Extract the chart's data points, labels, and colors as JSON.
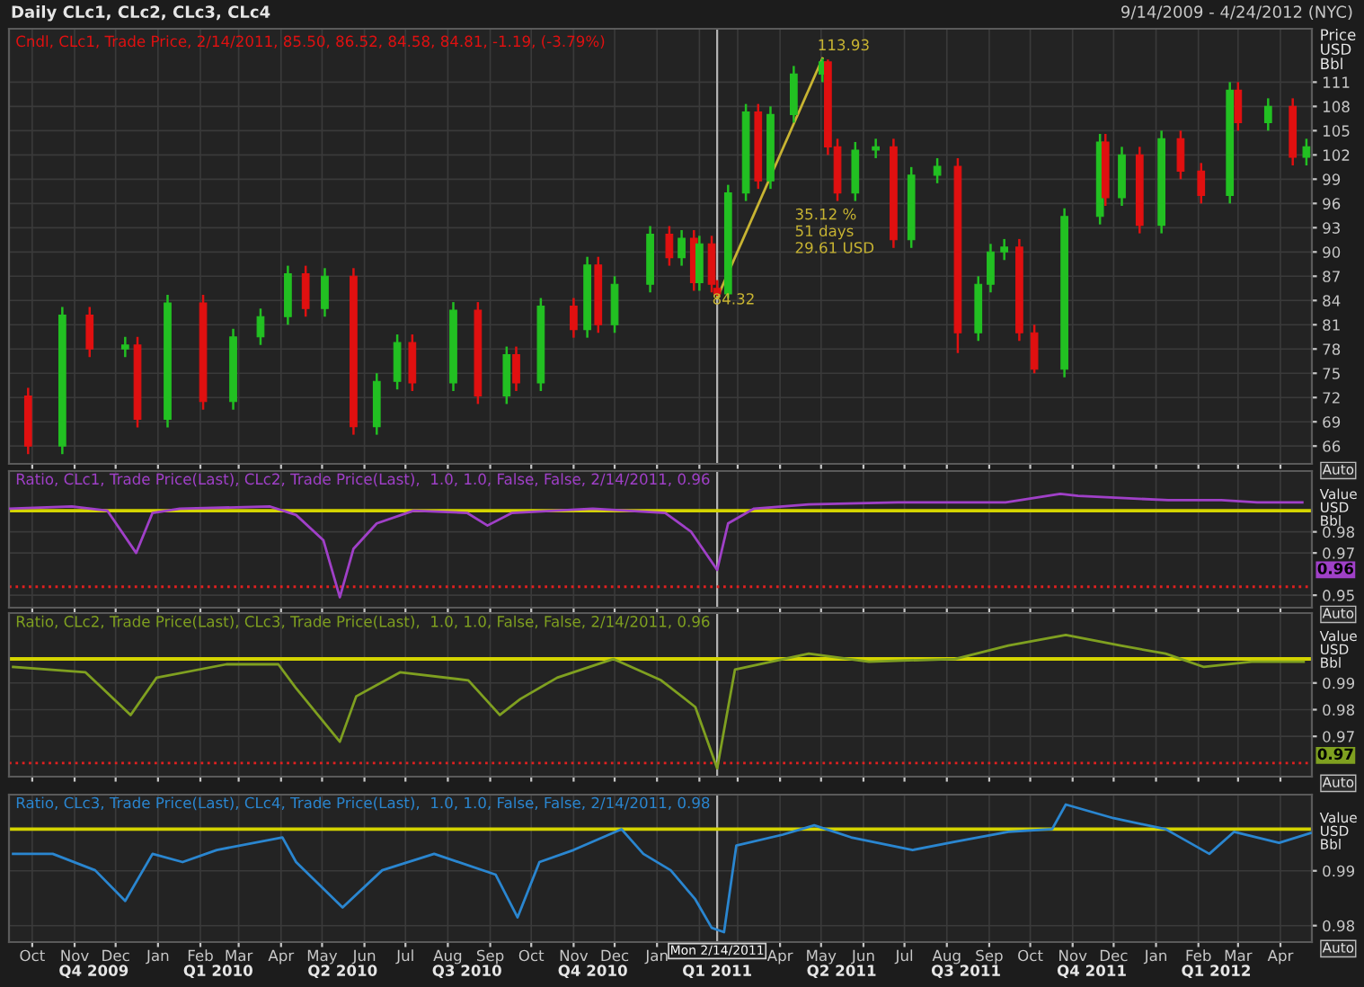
{
  "chart_data": [
    {
      "type": "candlestick",
      "title": "Daily CLc1, CLc2, CLc3, CLc4",
      "subtitle": "Cndl, CLc1, Trade Price, 2/14/2011, 85.50, 86.52, 84.58, 84.81, -1.19, (-3.79%)",
      "ylabel": "Price\nUSD\nBbl",
      "x": [
        "2009-09-28",
        "2009-10-23",
        "2009-11-12",
        "2009-12-08",
        "2009-12-17",
        "2010-01-08",
        "2010-02-03",
        "2010-02-25",
        "2010-03-17",
        "2010-04-06",
        "2010-04-19",
        "2010-05-03",
        "2010-05-24",
        "2010-06-10",
        "2010-06-25",
        "2010-07-06",
        "2010-08-05",
        "2010-08-23",
        "2010-09-13",
        "2010-09-20",
        "2010-10-08",
        "2010-11-01",
        "2010-11-11",
        "2010-11-19",
        "2010-12-01",
        "2010-12-27",
        "2011-01-10",
        "2011-01-19",
        "2011-01-28",
        "2011-02-01",
        "2011-02-10",
        "2011-02-14",
        "2011-02-22",
        "2011-03-07",
        "2011-03-16",
        "2011-03-25",
        "2011-04-11",
        "2011-05-02",
        "2011-05-06",
        "2011-05-13",
        "2011-05-26",
        "2011-06-10",
        "2011-06-23",
        "2011-07-06",
        "2011-07-25",
        "2011-08-09",
        "2011-08-24",
        "2011-09-02",
        "2011-09-12",
        "2011-09-23",
        "2011-10-04",
        "2011-10-26",
        "2011-11-21",
        "2011-11-25",
        "2011-12-07",
        "2011-12-20",
        "2012-01-05",
        "2012-01-19",
        "2012-02-03",
        "2012-02-24",
        "2012-03-01",
        "2012-03-23",
        "2012-04-10",
        "2012-04-20"
      ],
      "ohlc": [
        [
          72.2,
          73.2,
          65,
          66
        ],
        [
          66,
          83.2,
          65,
          82.2
        ],
        [
          82.2,
          83.2,
          77,
          78
        ],
        [
          78,
          79.5,
          77,
          78.5
        ],
        [
          78.5,
          79.5,
          68.3,
          69.3
        ],
        [
          69.3,
          84.7,
          68.3,
          83.7
        ],
        [
          83.7,
          84.7,
          70.5,
          71.5
        ],
        [
          71.5,
          80.5,
          70.5,
          79.5
        ],
        [
          79.5,
          83,
          78.5,
          82
        ],
        [
          82,
          88.3,
          81,
          87.3
        ],
        [
          87.3,
          88.3,
          82,
          83
        ],
        [
          83,
          88,
          82,
          87
        ],
        [
          87,
          88,
          67.4,
          68.4
        ],
        [
          68.4,
          75,
          67.4,
          74
        ],
        [
          74,
          79.8,
          73,
          78.8
        ],
        [
          78.8,
          79.8,
          72.8,
          73.8
        ],
        [
          73.8,
          83.8,
          72.8,
          82.8
        ],
        [
          82.8,
          83.8,
          71.2,
          72.2
        ],
        [
          72.2,
          78.3,
          71.2,
          77.3
        ],
        [
          77.3,
          78.3,
          72.8,
          73.8
        ],
        [
          73.8,
          84.3,
          72.8,
          83.3
        ],
        [
          83.3,
          84.3,
          79.4,
          80.4
        ],
        [
          80.4,
          89.4,
          79.4,
          88.4
        ],
        [
          88.4,
          89.4,
          80,
          81
        ],
        [
          81,
          87,
          80,
          86
        ],
        [
          86,
          93.2,
          85,
          92.2
        ],
        [
          92.2,
          93.2,
          88.3,
          89.3
        ],
        [
          89.3,
          92.7,
          88.3,
          91.7
        ],
        [
          91.7,
          92.7,
          85.2,
          86.2
        ],
        [
          86.2,
          92,
          85.2,
          91
        ],
        [
          91,
          92,
          85,
          86
        ],
        [
          85.5,
          86.52,
          84.58,
          84.81
        ],
        [
          84.81,
          98.3,
          84.3,
          97.3
        ],
        [
          97.3,
          108.3,
          96.3,
          107.3
        ],
        [
          107.3,
          108.3,
          97.8,
          98.8
        ],
        [
          98.8,
          108,
          97.8,
          107
        ],
        [
          107,
          113,
          106,
          112
        ],
        [
          112,
          113.93,
          111,
          113.5
        ],
        [
          113.5,
          113.8,
          102,
          103
        ],
        [
          103,
          104,
          96.3,
          97.3
        ],
        [
          97.3,
          103.6,
          96.3,
          102.6
        ],
        [
          102.6,
          104,
          101.6,
          103
        ],
        [
          103,
          104,
          90.5,
          91.5
        ],
        [
          91.5,
          100.5,
          90.5,
          99.5
        ],
        [
          99.5,
          101.6,
          98.5,
          100.6
        ],
        [
          100.6,
          101.6,
          77.5,
          80
        ],
        [
          80,
          87,
          79,
          86
        ],
        [
          86,
          91,
          85,
          90
        ],
        [
          90,
          91.6,
          89,
          90.6
        ],
        [
          90.6,
          91.6,
          79,
          80
        ],
        [
          80,
          81,
          75,
          75.5
        ],
        [
          75.5,
          95.4,
          74.5,
          94.4
        ],
        [
          94.4,
          104.6,
          93.4,
          103.6
        ],
        [
          103.6,
          104.6,
          95.7,
          96.7
        ],
        [
          96.7,
          103,
          95.7,
          102
        ],
        [
          102,
          103,
          92.3,
          93.3
        ],
        [
          93.3,
          105,
          92.3,
          104
        ],
        [
          104,
          105,
          99,
          100
        ],
        [
          100,
          101,
          96,
          97
        ],
        [
          97,
          111,
          96,
          110
        ],
        [
          110,
          111,
          105,
          106
        ],
        [
          106,
          109,
          105,
          108
        ],
        [
          108,
          109,
          100.7,
          101.7
        ],
        [
          101.7,
          104,
          100.7,
          103
        ]
      ],
      "colors": [
        "#e01010",
        "#22c022",
        "#e01010",
        "#22c022",
        "#e01010",
        "#22c022",
        "#e01010",
        "#22c022",
        "#22c022",
        "#22c022",
        "#e01010",
        "#22c022",
        "#e01010",
        "#22c022",
        "#22c022",
        "#e01010",
        "#22c022",
        "#e01010",
        "#22c022",
        "#e01010",
        "#22c022",
        "#e01010",
        "#22c022",
        "#e01010",
        "#22c022",
        "#22c022",
        "#e01010",
        "#22c022",
        "#e01010",
        "#22c022",
        "#e01010",
        "#e01010",
        "#22c022",
        "#22c022",
        "#e01010",
        "#22c022",
        "#22c022",
        "#22c022",
        "#e01010",
        "#e01010",
        "#22c022",
        "#22c022",
        "#e01010",
        "#22c022",
        "#22c022",
        "#e01010",
        "#22c022",
        "#22c022",
        "#22c022",
        "#e01010",
        "#e01010",
        "#22c022",
        "#22c022",
        "#e01010",
        "#22c022",
        "#e01010",
        "#22c022",
        "#e01010",
        "#e01010",
        "#22c022",
        "#e01010",
        "#22c022",
        "#e01010",
        "#22c022"
      ],
      "series": [
        {
          "type": "line",
          "x": [
            "2011-02-14",
            "2011-05-02"
          ],
          "values": [
            84.32,
            113.93
          ],
          "color": "#c8b432"
        }
      ],
      "xlim": [
        "2009-09-14",
        "2012-04-24"
      ],
      "ylim": [
        63.8,
        117.6
      ],
      "yticks": [
        66,
        69,
        72,
        75,
        78,
        81,
        84,
        87,
        90,
        93,
        96,
        99,
        102,
        105,
        108,
        111
      ],
      "xticks": [
        {
          "value": "2009-10-01",
          "label": null
        },
        {
          "value": "2009-11-01",
          "label": null
        },
        {
          "value": "2009-12-01",
          "label": null
        },
        {
          "value": "2010-01-01",
          "label": null
        },
        {
          "value": "2010-02-01",
          "label": null
        },
        {
          "value": "2010-03-01",
          "label": null
        },
        {
          "value": "2010-04-01",
          "label": null
        },
        {
          "value": "2010-05-01",
          "label": null
        },
        {
          "value": "2010-06-01",
          "label": null
        },
        {
          "value": "2010-07-01",
          "label": null
        },
        {
          "value": "2010-08-01",
          "label": null
        },
        {
          "value": "2010-09-01",
          "label": null
        },
        {
          "value": "2010-10-01",
          "label": null
        },
        {
          "value": "2010-11-01",
          "label": null
        },
        {
          "value": "2010-12-01",
          "label": null
        },
        {
          "value": "2011-01-01",
          "label": null
        },
        {
          "value": "2011-02-01",
          "label": null
        },
        {
          "value": "2011-03-01",
          "label": null
        },
        {
          "value": "2011-04-01",
          "label": null
        },
        {
          "value": "2011-05-01",
          "label": null
        },
        {
          "value": "2011-06-01",
          "label": null
        },
        {
          "value": "2011-07-01",
          "label": null
        },
        {
          "value": "2011-08-01",
          "label": null
        },
        {
          "value": "2011-09-01",
          "label": null
        },
        {
          "value": "2011-10-01",
          "label": null
        },
        {
          "value": "2011-11-01",
          "label": null
        },
        {
          "value": "2011-12-01",
          "label": null
        },
        {
          "value": "2012-01-01",
          "label": null
        },
        {
          "value": "2012-02-01",
          "label": null
        },
        {
          "value": "2012-03-01",
          "label": null
        },
        {
          "value": "2012-04-01",
          "label": null
        }
      ],
      "tick_labels": "y",
      "grid": true,
      "ref_lines": [
        {
          "axis": "x",
          "value": "2011-02-14",
          "color": "#b4b4b4"
        }
      ],
      "annotations": [
        "9/14/2009 - 4/24/2012 (NYC)",
        "35.12 %\n51 days\n29.61 USD",
        "Auto",
        {
          "text": "113.93",
          "x": "2011-05-02",
          "y": 113.93
        },
        {
          "text": "84.32",
          "x": "2011-02-14",
          "y": 84.32
        }
      ]
    },
    {
      "type": "line",
      "subtitle": "Ratio, CLc1, Trade Price(Last), CLc2, Trade Price(Last),  1.0, 1.0, False, False, 2/14/2011, 0.96",
      "ylabel": "Value\nUSD\nBbl",
      "series": [
        {
          "color": "#a040c8",
          "x": [
            "2009-09-14",
            "2009-10-30",
            "2009-11-25",
            "2009-12-16",
            "2009-12-28",
            "2010-01-17",
            "2010-03-24",
            "2010-04-12",
            "2010-05-02",
            "2010-05-14",
            "2010-05-24",
            "2010-06-10",
            "2010-07-07",
            "2010-08-15",
            "2010-08-30",
            "2010-09-17",
            "2010-11-15",
            "2011-01-07",
            "2011-01-26",
            "2011-02-14",
            "2011-02-22",
            "2011-03-13",
            "2011-04-22",
            "2011-06-26",
            "2011-09-13",
            "2011-10-23",
            "2011-11-05",
            "2012-01-10",
            "2012-02-18",
            "2012-03-15",
            "2012-04-17"
          ],
          "values": [
            0.991,
            0.992,
            0.99,
            0.97,
            0.989,
            0.991,
            0.992,
            0.988,
            0.976,
            0.949,
            0.972,
            0.984,
            0.99,
            0.989,
            0.983,
            0.989,
            0.991,
            0.989,
            0.98,
            0.962,
            0.984,
            0.991,
            0.993,
            0.994,
            0.994,
            0.998,
            0.997,
            0.995,
            0.995,
            0.994,
            0.994
          ]
        }
      ],
      "xlim": [
        "2009-09-14",
        "2012-04-24"
      ],
      "ylim": [
        0.9441,
        1.0088
      ],
      "yticks": [
        0.95,
        0.97,
        0.98
      ],
      "xticks": [
        {
          "value": "2009-10-01",
          "label": null
        },
        {
          "value": "2009-11-01",
          "label": null
        },
        {
          "value": "2009-12-01",
          "label": null
        },
        {
          "value": "2010-01-01",
          "label": null
        },
        {
          "value": "2010-02-01",
          "label": null
        },
        {
          "value": "2010-03-01",
          "label": null
        },
        {
          "value": "2010-04-01",
          "label": null
        },
        {
          "value": "2010-05-01",
          "label": null
        },
        {
          "value": "2010-06-01",
          "label": null
        },
        {
          "value": "2010-07-01",
          "label": null
        },
        {
          "value": "2010-08-01",
          "label": null
        },
        {
          "value": "2010-09-01",
          "label": null
        },
        {
          "value": "2010-10-01",
          "label": null
        },
        {
          "value": "2010-11-01",
          "label": null
        },
        {
          "value": "2010-12-01",
          "label": null
        },
        {
          "value": "2011-01-01",
          "label": null
        },
        {
          "value": "2011-02-01",
          "label": null
        },
        {
          "value": "2011-03-01",
          "label": null
        },
        {
          "value": "2011-04-01",
          "label": null
        },
        {
          "value": "2011-05-01",
          "label": null
        },
        {
          "value": "2011-06-01",
          "label": null
        },
        {
          "value": "2011-07-01",
          "label": null
        },
        {
          "value": "2011-08-01",
          "label": null
        },
        {
          "value": "2011-09-01",
          "label": null
        },
        {
          "value": "2011-10-01",
          "label": null
        },
        {
          "value": "2011-11-01",
          "label": null
        },
        {
          "value": "2011-12-01",
          "label": null
        },
        {
          "value": "2012-01-01",
          "label": null
        },
        {
          "value": "2012-02-01",
          "label": null
        },
        {
          "value": "2012-03-01",
          "label": null
        },
        {
          "value": "2012-04-01",
          "label": null
        }
      ],
      "tick_labels": "y",
      "grid": true,
      "ref_lines": [
        {
          "axis": "x",
          "value": "2011-02-14",
          "color": "#b4b4b4"
        },
        {
          "axis": "y",
          "value": 0.99,
          "color": "#d4d400"
        },
        {
          "axis": "y",
          "value": 0.954,
          "color": "#e02020",
          "line_style": "dotted"
        }
      ],
      "annotations": [
        "0.96",
        "Auto"
      ]
    },
    {
      "type": "line",
      "subtitle": "Ratio, CLc2, Trade Price(Last), CLc3, Trade Price(Last),  1.0, 1.0, False, False, 2/14/2011, 0.96",
      "ylabel": "Value\nUSD\nBbl",
      "series": [
        {
          "color": "#7fa020",
          "x": [
            "2009-09-17",
            "2009-11-09",
            "2009-12-12",
            "2009-12-31",
            "2010-02-20",
            "2010-03-30",
            "2010-04-12",
            "2010-05-14",
            "2010-05-26",
            "2010-06-27",
            "2010-08-16",
            "2010-09-08",
            "2010-09-23",
            "2010-10-20",
            "2010-11-30",
            "2011-01-04",
            "2011-01-29",
            "2011-02-14",
            "2011-02-27",
            "2011-04-22",
            "2011-06-05",
            "2011-08-07",
            "2011-09-15",
            "2011-10-27",
            "2011-12-06",
            "2012-01-08",
            "2012-02-05",
            "2012-03-11",
            "2012-04-18"
          ],
          "values": [
            0.996,
            0.994,
            0.978,
            0.992,
            0.997,
            0.997,
            0.988,
            0.968,
            0.985,
            0.994,
            0.991,
            0.978,
            0.984,
            0.992,
            0.999,
            0.991,
            0.981,
            0.958,
            0.995,
            1.001,
            0.998,
            0.999,
            1.004,
            1.008,
            1.004,
            1.001,
            0.996,
            0.998,
            0.998
          ]
        }
      ],
      "xlim": [
        "2009-09-14",
        "2012-04-24"
      ],
      "ylim": [
        0.9549,
        1.0162
      ],
      "yticks": [
        0.97,
        0.98,
        0.99
      ],
      "xticks": [
        {
          "value": "2009-10-01",
          "label": null
        },
        {
          "value": "2009-11-01",
          "label": null
        },
        {
          "value": "2009-12-01",
          "label": null
        },
        {
          "value": "2010-01-01",
          "label": null
        },
        {
          "value": "2010-02-01",
          "label": null
        },
        {
          "value": "2010-03-01",
          "label": null
        },
        {
          "value": "2010-04-01",
          "label": null
        },
        {
          "value": "2010-05-01",
          "label": null
        },
        {
          "value": "2010-06-01",
          "label": null
        },
        {
          "value": "2010-07-01",
          "label": null
        },
        {
          "value": "2010-08-01",
          "label": null
        },
        {
          "value": "2010-09-01",
          "label": null
        },
        {
          "value": "2010-10-01",
          "label": null
        },
        {
          "value": "2010-11-01",
          "label": null
        },
        {
          "value": "2010-12-01",
          "label": null
        },
        {
          "value": "2011-01-01",
          "label": null
        },
        {
          "value": "2011-02-01",
          "label": null
        },
        {
          "value": "2011-03-01",
          "label": null
        },
        {
          "value": "2011-04-01",
          "label": null
        },
        {
          "value": "2011-05-01",
          "label": null
        },
        {
          "value": "2011-06-01",
          "label": null
        },
        {
          "value": "2011-07-01",
          "label": null
        },
        {
          "value": "2011-08-01",
          "label": null
        },
        {
          "value": "2011-09-01",
          "label": null
        },
        {
          "value": "2011-10-01",
          "label": null
        },
        {
          "value": "2011-11-01",
          "label": null
        },
        {
          "value": "2011-12-01",
          "label": null
        },
        {
          "value": "2012-01-01",
          "label": null
        },
        {
          "value": "2012-02-01",
          "label": null
        },
        {
          "value": "2012-03-01",
          "label": null
        },
        {
          "value": "2012-04-01",
          "label": null
        }
      ],
      "tick_labels": "y",
      "grid": true,
      "ref_lines": [
        {
          "axis": "x",
          "value": "2011-02-14",
          "color": "#b4b4b4"
        },
        {
          "axis": "y",
          "value": 0.999,
          "color": "#d4d400"
        },
        {
          "axis": "y",
          "value": 0.96,
          "color": "#e02020",
          "line_style": "dotted"
        }
      ],
      "annotations": [
        "0.97",
        "Auto"
      ]
    },
    {
      "type": "line",
      "subtitle": "Ratio, CLc3, Trade Price(Last), CLc4, Trade Price(Last),  1.0, 1.0, False, False, 2/14/2011, 0.98",
      "ylabel": "Value\nUSD\nBbl",
      "series": [
        {
          "color": "#2a86d0",
          "x": [
            "2009-09-17",
            "2009-10-16",
            "2009-11-16",
            "2009-12-08",
            "2009-12-28",
            "2010-01-19",
            "2010-02-13",
            "2010-04-02",
            "2010-04-12",
            "2010-05-16",
            "2010-06-14",
            "2010-07-22",
            "2010-09-05",
            "2010-09-21",
            "2010-10-07",
            "2010-11-01",
            "2010-12-06",
            "2010-12-22",
            "2011-01-11",
            "2011-01-29",
            "2011-02-10",
            "2011-02-19",
            "2011-02-28",
            "2011-04-03",
            "2011-04-26",
            "2011-05-23",
            "2011-07-07",
            "2011-08-07",
            "2011-09-15",
            "2011-10-17",
            "2011-10-27",
            "2011-12-01",
            "2012-01-08",
            "2012-02-09",
            "2012-02-27",
            "2012-03-31",
            "2012-04-23"
          ],
          "values": [
            0.9931,
            0.9931,
            0.9901,
            0.9845,
            0.9931,
            0.9916,
            0.9938,
            0.9961,
            0.9916,
            0.9833,
            0.9901,
            0.9931,
            0.9893,
            0.9815,
            0.9916,
            0.9938,
            0.9976,
            0.9931,
            0.9901,
            0.9848,
            0.9796,
            0.9788,
            0.9946,
            0.9966,
            0.9983,
            0.9961,
            0.9938,
            0.9953,
            0.9971,
            0.9976,
            1.0021,
            0.9996,
            0.9976,
            0.9931,
            0.9971,
            0.9951,
            0.9969
          ]
        }
      ],
      "xlim": [
        "2009-09-14",
        "2012-04-24"
      ],
      "ylim": [
        0.977,
        1.0039
      ],
      "yticks": [
        0.98,
        0.99
      ],
      "xticks": [
        {
          "value": "2009-10-01",
          "label": "Oct"
        },
        {
          "value": "2009-11-01",
          "label": "Nov"
        },
        {
          "value": "2009-12-01",
          "label": "Dec"
        },
        {
          "value": "2010-01-01",
          "label": "Jan"
        },
        {
          "value": "2010-02-01",
          "label": "Feb"
        },
        {
          "value": "2010-03-01",
          "label": "Mar"
        },
        {
          "value": "2010-04-01",
          "label": "Apr"
        },
        {
          "value": "2010-05-01",
          "label": "May"
        },
        {
          "value": "2010-06-01",
          "label": "Jun"
        },
        {
          "value": "2010-07-01",
          "label": "Jul"
        },
        {
          "value": "2010-08-01",
          "label": "Aug"
        },
        {
          "value": "2010-09-01",
          "label": "Sep"
        },
        {
          "value": "2010-10-01",
          "label": "Oct"
        },
        {
          "value": "2010-11-01",
          "label": "Nov"
        },
        {
          "value": "2010-12-01",
          "label": "Dec"
        },
        {
          "value": "2011-01-01",
          "label": "Jan"
        },
        {
          "value": "2011-02-01",
          "label": null
        },
        {
          "value": "2011-03-01",
          "label": null
        },
        {
          "value": "2011-04-01",
          "label": "Apr"
        },
        {
          "value": "2011-05-01",
          "label": "May"
        },
        {
          "value": "2011-06-01",
          "label": "Jun"
        },
        {
          "value": "2011-07-01",
          "label": "Jul"
        },
        {
          "value": "2011-08-01",
          "label": "Aug"
        },
        {
          "value": "2011-09-01",
          "label": "Sep"
        },
        {
          "value": "2011-10-01",
          "label": "Oct"
        },
        {
          "value": "2011-11-01",
          "label": "Nov"
        },
        {
          "value": "2011-12-01",
          "label": "Dec"
        },
        {
          "value": "2012-01-01",
          "label": "Jan"
        },
        {
          "value": "2012-02-01",
          "label": "Feb"
        },
        {
          "value": "2012-03-01",
          "label": "Mar"
        },
        {
          "value": "2012-04-01",
          "label": "Apr"
        }
      ],
      "x2lim": [
        "2009-09-14",
        "2012-04-24"
      ],
      "x2ticks": [
        {
          "value": "2009-11-15",
          "label": "Q4 2009"
        },
        {
          "value": "2010-02-14",
          "label": "Q1 2010"
        },
        {
          "value": "2010-05-16",
          "label": "Q2 2010"
        },
        {
          "value": "2010-08-15",
          "label": "Q3 2010"
        },
        {
          "value": "2010-11-15",
          "label": "Q4 2010"
        },
        {
          "value": "2011-02-14",
          "label": "Q1 2011"
        },
        {
          "value": "2011-05-16",
          "label": "Q2 2011"
        },
        {
          "value": "2011-08-15",
          "label": "Q3 2011"
        },
        {
          "value": "2011-11-15",
          "label": "Q4 2011"
        },
        {
          "value": "2012-02-14",
          "label": "Q1 2012"
        }
      ],
      "grid": true,
      "ref_lines": [
        {
          "axis": "x",
          "value": "2011-02-14",
          "color": "#b4b4b4",
          "label": "Mon 2/14/2011"
        },
        {
          "axis": "y",
          "value": 0.9976,
          "color": "#d4d400"
        }
      ],
      "annotations": [
        "Auto"
      ]
    }
  ]
}
